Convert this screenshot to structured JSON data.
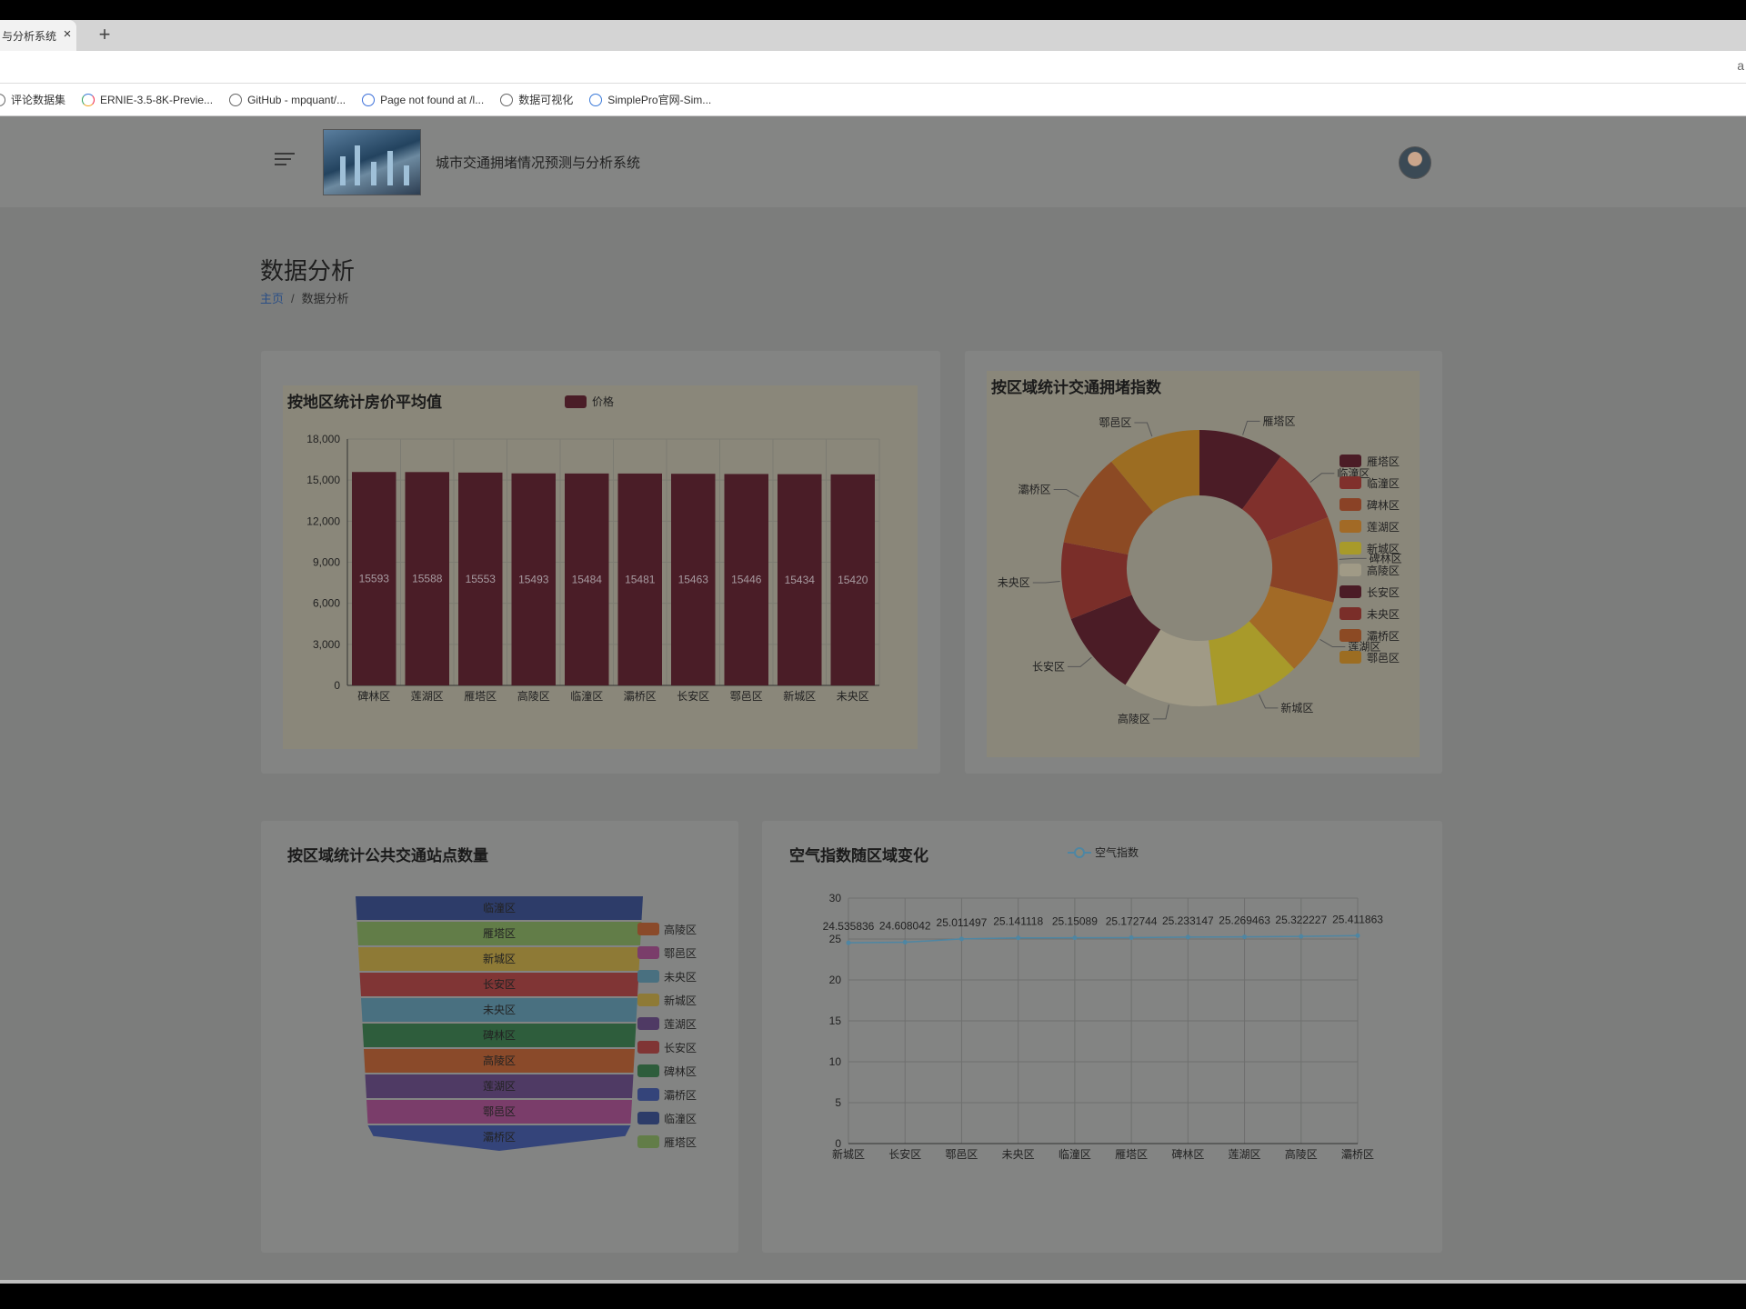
{
  "browser": {
    "tab_title": "与分析系统",
    "tab_close": "×",
    "new_tab": "+",
    "address_right": "a",
    "bookmarks": [
      {
        "label": "评论数据集",
        "icon": "globe-icon"
      },
      {
        "label": "ERNIE-3.5-8K-Previe...",
        "icon": "ernie-icon"
      },
      {
        "label": "GitHub - mpquant/...",
        "icon": "globe-icon"
      },
      {
        "label": "Page not found at /l...",
        "icon": "paw-icon"
      },
      {
        "label": "数据可视化",
        "icon": "globe-icon"
      },
      {
        "label": "SimplePro官网-Sim...",
        "icon": "simplepro-icon"
      }
    ]
  },
  "header": {
    "site_title": "城市交通拥堵情况预测与分析系统"
  },
  "page": {
    "title": "数据分析",
    "breadcrumb_home": "主页",
    "breadcrumb_sep": "/",
    "breadcrumb_current": "数据分析"
  },
  "colors": {
    "bar": "#4a1d27",
    "line": "#4e86a3"
  },
  "chart_data": [
    {
      "type": "bar",
      "title": "按地区统计房价平均值",
      "legend": [
        "价格"
      ],
      "categories": [
        "碑林区",
        "莲湖区",
        "雁塔区",
        "高陵区",
        "临潼区",
        "灞桥区",
        "长安区",
        "鄠邑区",
        "新城区",
        "未央区"
      ],
      "series": [
        {
          "name": "价格",
          "values": [
            15593,
            15588,
            15553,
            15493,
            15484,
            15481,
            15463,
            15446,
            15434,
            15420
          ]
        }
      ],
      "ylim": [
        0,
        18000
      ],
      "yticks": [
        "0",
        "3,000",
        "6,000",
        "9,000",
        "12,000",
        "15,000",
        "18,000"
      ],
      "data_labels": [
        "15593",
        "15588",
        "15553",
        "15493",
        "15484",
        "15481",
        "15463",
        "15446",
        "15434",
        "15420"
      ],
      "grid": true
    },
    {
      "type": "pie",
      "title": "按区域统计交通拥堵指数",
      "slices": [
        {
          "name": "雁塔区",
          "value": 10,
          "color": "#4b1c26"
        },
        {
          "name": "临潼区",
          "value": 9,
          "color": "#80302c"
        },
        {
          "name": "碑林区",
          "value": 10,
          "color": "#8a4226"
        },
        {
          "name": "莲湖区",
          "value": 9,
          "color": "#a26a26"
        },
        {
          "name": "新城区",
          "value": 10,
          "color": "#a89a2a"
        },
        {
          "name": "高陵区",
          "value": 11,
          "color": "#a09a86"
        },
        {
          "name": "长安区",
          "value": 10,
          "color": "#4b1c26"
        },
        {
          "name": "未央区",
          "value": 9,
          "color": "#7a2e29"
        },
        {
          "name": "灞桥区",
          "value": 11,
          "color": "#8c4a24"
        },
        {
          "name": "鄠邑区",
          "value": 11,
          "color": "#9c6d22"
        }
      ],
      "legend": [
        "雁塔区",
        "临潼区",
        "碑林区",
        "莲湖区",
        "新城区",
        "高陵区",
        "长安区",
        "未央区",
        "灞桥区",
        "鄠邑区"
      ],
      "legend_position": "right"
    },
    {
      "type": "funnel",
      "title": "按区域统计公共交通站点数量",
      "stages": [
        {
          "name": "临潼区",
          "color": "#2d3c69"
        },
        {
          "name": "雁塔区",
          "color": "#627d48"
        },
        {
          "name": "新城区",
          "color": "#8e7a36"
        },
        {
          "name": "长安区",
          "color": "#803535"
        },
        {
          "name": "未央区",
          "color": "#497080"
        },
        {
          "name": "碑林区",
          "color": "#2e5d3c"
        },
        {
          "name": "高陵区",
          "color": "#8a4a2a"
        },
        {
          "name": "莲湖区",
          "color": "#4f3a64"
        },
        {
          "name": "鄠邑区",
          "color": "#7a3d6a"
        },
        {
          "name": "灞桥区",
          "color": "#34447a"
        }
      ],
      "legend": [
        {
          "name": "高陵区",
          "color": "#8a4a2a"
        },
        {
          "name": "鄠邑区",
          "color": "#7a3d6a"
        },
        {
          "name": "未央区",
          "color": "#497080"
        },
        {
          "name": "新城区",
          "color": "#8e7a36"
        },
        {
          "name": "莲湖区",
          "color": "#4f3a64"
        },
        {
          "name": "长安区",
          "color": "#803535"
        },
        {
          "name": "碑林区",
          "color": "#2e5d3c"
        },
        {
          "name": "灞桥区",
          "color": "#34447a"
        },
        {
          "name": "临潼区",
          "color": "#2d3c69"
        },
        {
          "name": "雁塔区",
          "color": "#627d48"
        }
      ],
      "legend_position": "right"
    },
    {
      "type": "line",
      "title": "空气指数随区域变化",
      "legend": [
        "空气指数"
      ],
      "categories": [
        "新城区",
        "长安区",
        "鄠邑区",
        "未央区",
        "临潼区",
        "雁塔区",
        "碑林区",
        "莲湖区",
        "高陵区",
        "灞桥区"
      ],
      "series": [
        {
          "name": "空气指数",
          "values": [
            24.535836,
            24.608042,
            25.011497,
            25.141118,
            25.15089,
            25.172744,
            25.233147,
            25.269463,
            25.322227,
            25.411863
          ]
        }
      ],
      "data_labels": [
        "24.535836",
        "24.608042",
        "25.011497",
        "25.141118",
        "25.15089",
        "25.172744",
        "25.233147",
        "25.269463",
        "25.322227",
        "25.411863"
      ],
      "ylim": [
        0,
        30
      ],
      "yticks": [
        "0",
        "5",
        "10",
        "15",
        "20",
        "25",
        "30"
      ],
      "grid": true
    }
  ]
}
